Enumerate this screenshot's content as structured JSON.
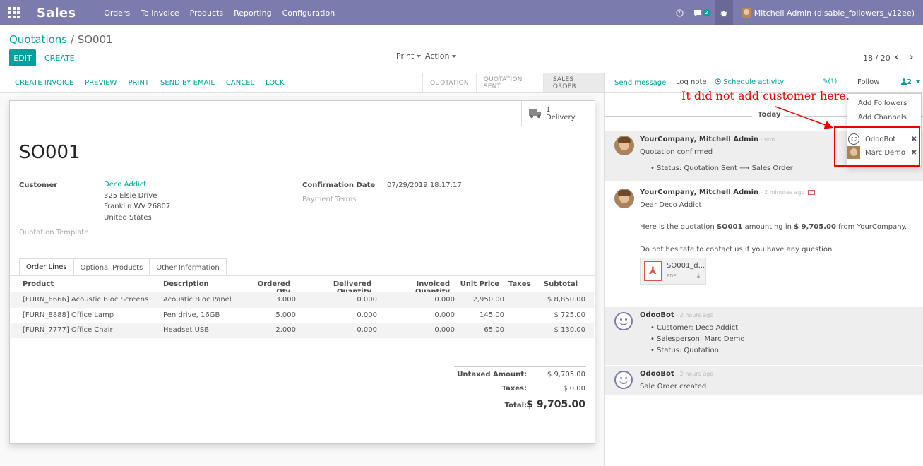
{
  "topbar": {
    "app_name": "Sales",
    "menu": [
      "Orders",
      "To Invoice",
      "Products",
      "Reporting",
      "Configuration"
    ],
    "icons": [
      "apps-grid-icon",
      "clock-icon",
      "chat-icon",
      "bug-icon"
    ],
    "chat_count": "2",
    "user": "Mitchell Admin (disable_followers_v12ee)"
  },
  "control": {
    "breadcrumb_parent": "Quotations",
    "breadcrumb_sep": " / ",
    "breadcrumb_current": "SO001",
    "edit_label": "EDIT",
    "create_label": "CREATE",
    "print_label": "Print",
    "action_label": "Action",
    "pager": "18 / 20",
    "prev": "‹",
    "next": "›"
  },
  "statusbar": {
    "actions": [
      "CREATE INVOICE",
      "PREVIEW",
      "PRINT",
      "SEND BY EMAIL",
      "CANCEL",
      "LOCK"
    ],
    "stages": [
      "QUOTATION",
      "QUOTATION SENT",
      "SALES ORDER"
    ],
    "active_stage": "SALES ORDER"
  },
  "form": {
    "delivery_count": "1",
    "delivery_label": "Delivery",
    "name": "SO001",
    "customer_label": "Customer",
    "customer_name": "Deco Addict",
    "address": [
      "325 Elsie Drive",
      "Franklin WV 26807",
      "United States"
    ],
    "quotation_template_label": "Quotation Template",
    "confirmation_date_label": "Confirmation Date",
    "confirmation_date": "07/29/2019 18:17:17",
    "payment_terms_label": "Payment Terms",
    "tabs": [
      "Order Lines",
      "Optional Products",
      "Other Information"
    ],
    "columns": [
      "Product",
      "Description",
      "Ordered Qty",
      "Delivered Quantity",
      "Invoiced Quantity",
      "Unit Price",
      "Taxes",
      "Subtotal"
    ],
    "lines": [
      {
        "product": "[FURN_6666] Acoustic Bloc Screens",
        "description": "Acoustic Bloc Panel",
        "ordered": "3.000",
        "delivered": "0.000",
        "invoiced": "0.000",
        "price": "2,950.00",
        "taxes": "",
        "subtotal": "$ 8,850.00"
      },
      {
        "product": "[FURN_8888] Office Lamp",
        "description": "Pen drive, 16GB",
        "ordered": "5.000",
        "delivered": "0.000",
        "invoiced": "0.000",
        "price": "145.00",
        "taxes": "",
        "subtotal": "$ 725.00"
      },
      {
        "product": "[FURN_7777] Office Chair",
        "description": "Headset USB",
        "ordered": "2.000",
        "delivered": "0.000",
        "invoiced": "0.000",
        "price": "65.00",
        "taxes": "",
        "subtotal": "$ 130.00"
      }
    ],
    "untaxed_label": "Untaxed Amount:",
    "untaxed": "$ 9,705.00",
    "taxes_label": "Taxes:",
    "taxes": "$ 0.00",
    "total_label": "Total:",
    "total": "$ 9,705.00"
  },
  "chatter": {
    "send_message": "Send message",
    "log_note": "Log note",
    "schedule_activity": "Schedule activity",
    "attachments": "(1)",
    "follow": "Follow",
    "follower_count": "2",
    "today": "Today",
    "messages": [
      {
        "author": "YourCompany, Mitchell Admin",
        "when": " - now",
        "text": "Quotation confirmed",
        "bullets": [
          "Status: Quotation Sent ⟶ Sales Order"
        ]
      },
      {
        "author": "YourCompany, Mitchell Admin",
        "when": " - 2 minutes ago",
        "greeting": "Dear Deco Addict",
        "body_pre": "Here is the quotation ",
        "body_doc": "SO001",
        "body_mid": " amounting in ",
        "body_amount": "$ 9,705.00",
        "body_post": " from YourCompany.",
        "body2": "Do not hesitate to contact us if you have any question.",
        "attachment_name": "SO001_d...",
        "attachment_type": "PDF"
      },
      {
        "author": "OdooBot",
        "when": " - 2 hours ago",
        "bullets": [
          "Customer: Deco Addict",
          "Salesperson: Marc Demo",
          "Status: Quotation"
        ]
      },
      {
        "author": "OdooBot",
        "when": " - 2 hours ago",
        "text": "Sale Order created"
      }
    ]
  },
  "followers_dropdown": {
    "add_followers": "Add Followers",
    "add_channels": "Add Channels",
    "followers": [
      "OdooBot",
      "Marc Demo"
    ],
    "remove": "✖"
  },
  "annotation": {
    "text": "It did not add customer here.",
    "color": "#ee0000"
  }
}
